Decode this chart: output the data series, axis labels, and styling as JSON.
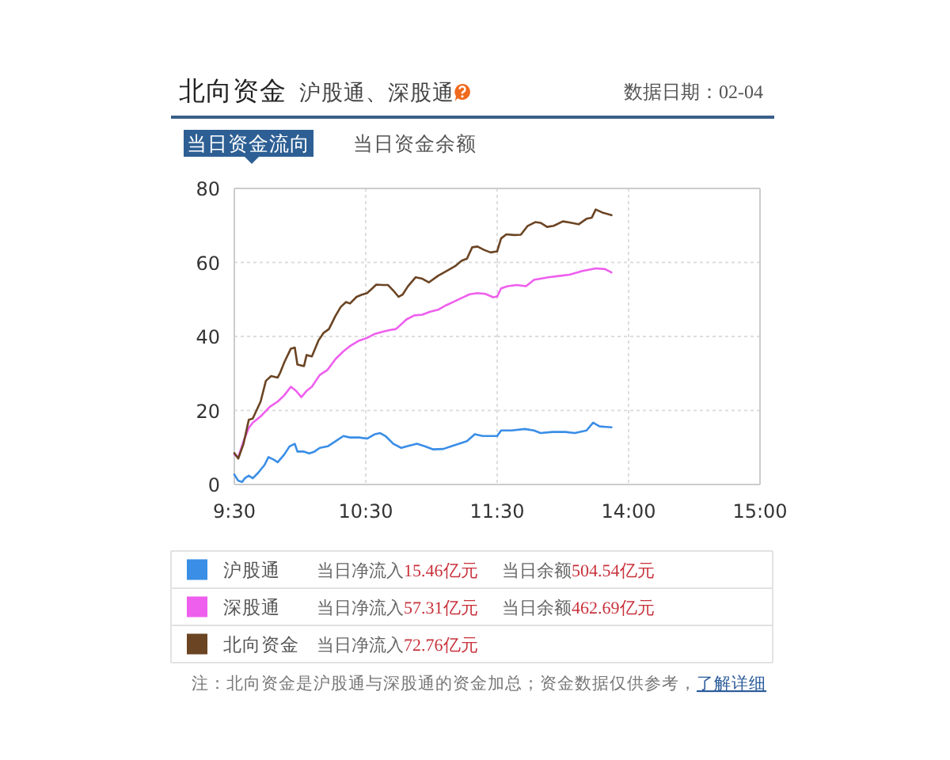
{
  "chart_data": [
    {
      "type": "line",
      "title": "北向资金",
      "subtitle": "沪股通、深股通",
      "annotations": [
        "数据日期：02-04",
        "当日资金流向",
        "当日资金余额",
        "当日净流入15.46亿元",
        "当日余额504.54亿元",
        "当日净流入57.31亿元",
        "当日余额462.69亿元",
        "当日净流入72.76亿元",
        "注：北向资金是沪股通与深股通的资金加总；资金数据仅供参考，",
        "了解详细"
      ],
      "xlim": [
        9.5,
        11.5
      ],
      "xticks": [
        {
          "value": 9.5,
          "label": "9:30"
        },
        {
          "value": 10.5,
          "label": "10:30"
        },
        {
          "value": 11.5,
          "label": "11:30"
        }
      ],
      "ylim": [
        0,
        80
      ],
      "yticks": [
        0,
        20,
        40,
        60,
        80
      ],
      "grid": true,
      "legend": "bottom",
      "line_style": "solid",
      "series": [
        {
          "name": "沪股通",
          "color": "#3a8ee6",
          "x": [
            9.5,
            9.53,
            9.56,
            9.58,
            9.61,
            9.64,
            9.68,
            9.73,
            9.76,
            9.8,
            9.83,
            9.88,
            9.92,
            9.96,
            9.98,
            10.03,
            10.07,
            10.11,
            10.15,
            10.21,
            10.27,
            10.33,
            10.38,
            10.45,
            10.51,
            10.57,
            10.61,
            10.65,
            10.71,
            10.77,
            10.83,
            10.89,
            10.95,
            11.01,
            11.09,
            11.15,
            11.21,
            11.27,
            11.33,
            11.39,
            11.45,
            11.5
          ],
          "values": [
            2.7,
            1,
            0.7,
            1.7,
            2.4,
            1.7,
            3.1,
            5.3,
            7.4,
            6.7,
            6,
            8.1,
            10.3,
            11,
            8.9,
            8.9,
            8.4,
            8.9,
            9.9,
            10.3,
            11.7,
            13.1,
            12.7,
            12.7,
            12.4,
            13.6,
            13.9,
            13.1,
            11,
            9.9,
            10.5,
            11,
            10.3,
            9.5,
            9.6,
            10.3,
            11,
            11.7,
            13.6,
            13.1,
            13.1,
            13.1
          ]
        },
        {
          "name": "深股通",
          "color": "#ee5fee",
          "x": [
            9.5,
            9.53,
            9.57,
            9.61,
            9.64,
            9.7,
            9.77,
            9.83,
            9.88,
            9.93,
            9.97,
            10.01,
            10.05,
            10.09,
            10.15,
            10.21,
            10.27,
            10.33,
            10.38,
            10.45,
            10.51,
            10.57,
            10.63,
            10.68,
            10.73,
            10.81,
            10.87,
            10.93,
            10.99,
            11.05,
            11.11,
            11.17,
            11.23,
            11.29,
            11.35,
            11.41,
            11.47,
            11.5
          ],
          "values": [
            8.1,
            7.4,
            11.7,
            15.3,
            16.7,
            18.4,
            21,
            22.4,
            24.1,
            26.4,
            25.3,
            23.6,
            25.3,
            26.4,
            29.6,
            31,
            33.9,
            36,
            37.4,
            38.9,
            39.6,
            40.7,
            41.3,
            41.7,
            42,
            44.6,
            45.7,
            45.9,
            46.7,
            47.2,
            48.4,
            49.4,
            50.4,
            51.4,
            51.7,
            51.5,
            50.6,
            50.8
          ]
        },
        {
          "name": "北向资金",
          "color": "#6b4423",
          "x": [
            9.5,
            9.53,
            9.57,
            9.61,
            9.64,
            9.7,
            9.74,
            9.78,
            9.83,
            9.85,
            9.88,
            9.93,
            9.96,
            9.98,
            10.03,
            10.05,
            10.09,
            10.14,
            10.18,
            10.22,
            10.27,
            10.31,
            10.35,
            10.38,
            10.43,
            10.47,
            10.51,
            10.55,
            10.58,
            10.63,
            10.67,
            10.71,
            10.75,
            10.78,
            10.82,
            10.88,
            10.93,
            10.98,
            11.05,
            11.12,
            11.18,
            11.23,
            11.27,
            11.31,
            11.35,
            11.4,
            11.45,
            11.5
          ],
          "values": [
            8.5,
            7,
            11,
            17.5,
            17.8,
            22.4,
            28,
            29.3,
            28.9,
            30.3,
            33,
            36.7,
            37,
            32.4,
            32,
            35,
            34.6,
            38.9,
            41,
            42,
            45.6,
            48,
            49.3,
            48.9,
            50.7,
            51.3,
            51.7,
            53,
            54,
            53.9,
            53.9,
            52.4,
            50.7,
            51.3,
            53.5,
            56,
            55.6,
            54.6,
            56.4,
            57.8,
            59,
            60.5,
            61,
            64.1,
            64.3,
            63.4,
            62.7,
            63
          ]
        }
      ]
    },
    {
      "type": "line",
      "xlim": [
        13,
        15
      ],
      "xticks": [
        {
          "value": 14,
          "label": "14:00"
        },
        {
          "value": 15,
          "label": "15:00"
        }
      ],
      "ylim": [
        0,
        80
      ],
      "yticks": [
        0,
        20,
        40,
        60,
        80
      ],
      "tick_labels": "x",
      "grid": true,
      "line_style": "solid",
      "series": [
        {
          "color": "#3a8ee6",
          "x": [
            13,
            13.03,
            13.11,
            13.21,
            13.28,
            13.33,
            13.42,
            13.52,
            13.59,
            13.68,
            13.73,
            13.78,
            13.87
          ],
          "values": [
            13.1,
            14.6,
            14.6,
            15,
            14.6,
            13.9,
            14.2,
            14.2,
            13.9,
            14.6,
            16.7,
            15.7,
            15.46
          ]
        },
        {
          "color": "#ee5fee",
          "x": [
            13,
            13.03,
            13.08,
            13.15,
            13.22,
            13.28,
            13.39,
            13.48,
            13.55,
            13.65,
            13.75,
            13.82,
            13.87
          ],
          "values": [
            50.8,
            53,
            53.6,
            53.9,
            53.6,
            55.3,
            56,
            56.4,
            56.7,
            57.7,
            58.4,
            58.2,
            57.31
          ]
        },
        {
          "color": "#6b4423",
          "x": [
            13,
            13.03,
            13.07,
            13.13,
            13.18,
            13.23,
            13.29,
            13.33,
            13.38,
            13.43,
            13.5,
            13.55,
            13.62,
            13.68,
            13.72,
            13.75,
            13.8,
            13.87
          ],
          "values": [
            63,
            66.5,
            67.6,
            67.4,
            67.5,
            69.8,
            70.9,
            70.7,
            69.6,
            69.9,
            71.1,
            70.8,
            70.3,
            71.8,
            72.1,
            74.3,
            73.5,
            72.76
          ]
        }
      ]
    }
  ]
}
